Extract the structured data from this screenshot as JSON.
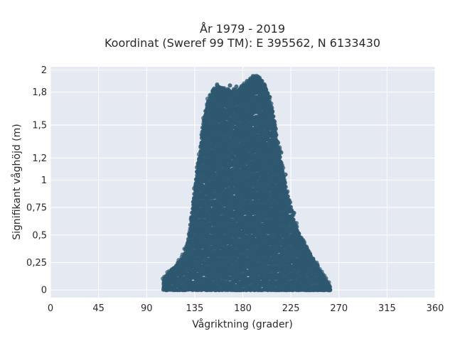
{
  "chart_data": {
    "type": "scatter",
    "title_line1": "År 1979 - 2019",
    "title_line2": "Koordinat (Sweref 99 TM): E 395562, N 6133430",
    "xlabel": "Vågriktning (grader)",
    "ylabel": "Signifikant våghöjd (m)",
    "xlim": [
      0,
      360
    ],
    "ylim": [
      -0.07,
      2.03
    ],
    "x_ticks": [
      {
        "value": 0,
        "label": "0"
      },
      {
        "value": 45,
        "label": "45"
      },
      {
        "value": 90,
        "label": "90"
      },
      {
        "value": 135,
        "label": "135"
      },
      {
        "value": 180,
        "label": "180"
      },
      {
        "value": 225,
        "label": "225"
      },
      {
        "value": 270,
        "label": "270"
      },
      {
        "value": 315,
        "label": "315"
      },
      {
        "value": 360,
        "label": "360"
      }
    ],
    "y_ticks": [
      {
        "value": 0,
        "label": "0"
      },
      {
        "value": 0.25,
        "label": "0,25"
      },
      {
        "value": 0.5,
        "label": "0,5"
      },
      {
        "value": 0.75,
        "label": "0,75"
      },
      {
        "value": 1,
        "label": "1"
      },
      {
        "value": 1.2,
        "label": "1,2"
      },
      {
        "value": 1.5,
        "label": "1,5"
      },
      {
        "value": 1.8,
        "label": "1,8"
      },
      {
        "value": 2,
        "label": "2"
      }
    ],
    "grid": true,
    "marker_color": "#2f5870",
    "plot_background": "#e5e9f1",
    "envelope": [
      [
        105,
        0.0
      ],
      [
        105,
        0.08
      ],
      [
        115,
        0.18
      ],
      [
        125,
        0.3
      ],
      [
        130,
        0.5
      ],
      [
        135,
        0.9
      ],
      [
        140,
        1.25
      ],
      [
        143,
        1.5
      ],
      [
        147,
        1.7
      ],
      [
        152,
        1.8
      ],
      [
        158,
        1.85
      ],
      [
        165,
        1.8
      ],
      [
        175,
        1.8
      ],
      [
        182,
        1.85
      ],
      [
        188,
        1.92
      ],
      [
        195,
        1.93
      ],
      [
        202,
        1.82
      ],
      [
        208,
        1.6
      ],
      [
        212,
        1.35
      ],
      [
        217,
        1.1
      ],
      [
        222,
        0.85
      ],
      [
        228,
        0.62
      ],
      [
        235,
        0.45
      ],
      [
        245,
        0.28
      ],
      [
        255,
        0.12
      ],
      [
        260,
        0.05
      ],
      [
        262,
        0.0
      ]
    ],
    "outliers": [
      [
        156,
        1.86
      ],
      [
        168,
        1.86
      ],
      [
        174,
        1.85
      ],
      [
        184,
        1.9
      ],
      [
        190,
        1.92
      ],
      [
        194,
        1.94
      ],
      [
        198,
        1.9
      ],
      [
        204,
        1.75
      ],
      [
        210,
        1.5
      ],
      [
        216,
        1.25
      ],
      [
        220,
        1.05
      ],
      [
        228,
        0.7
      ],
      [
        240,
        0.38
      ],
      [
        250,
        0.22
      ],
      [
        258,
        0.07
      ],
      [
        108,
        0.12
      ],
      [
        120,
        0.2
      ],
      [
        132,
        0.65
      ],
      [
        138,
        1.15
      ],
      [
        142,
        1.4
      ]
    ]
  }
}
